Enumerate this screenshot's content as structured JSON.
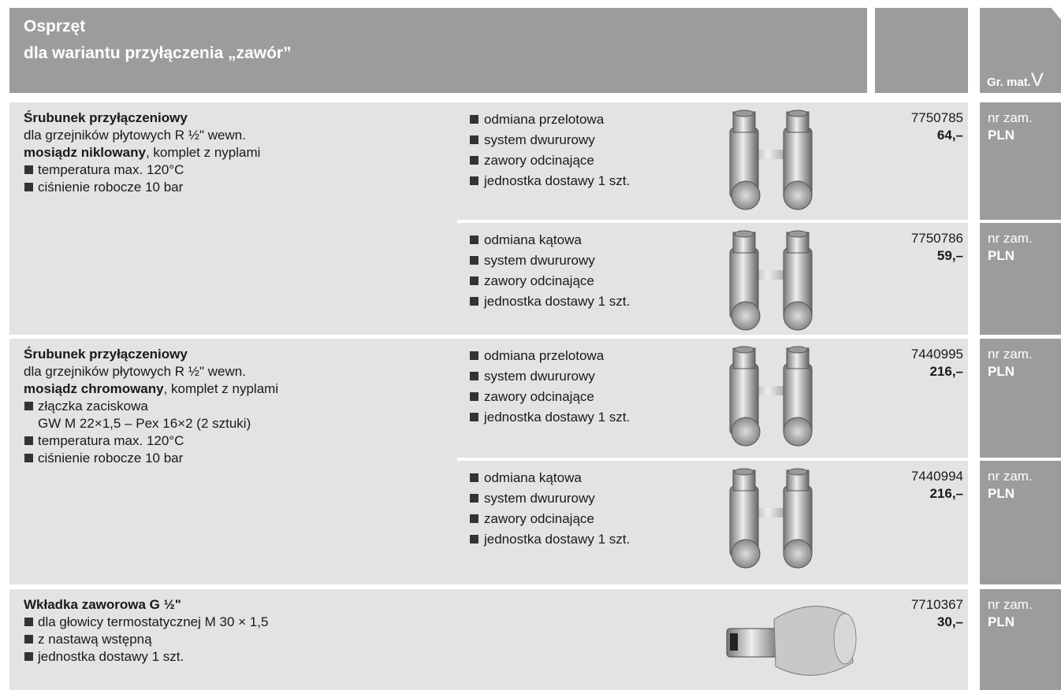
{
  "header": {
    "title": "Osprzęt",
    "subtitle": "dla wariantu przyłączenia „zawór”",
    "material_group_label": "Gr. mat.",
    "material_group": "V"
  },
  "sections": [
    {
      "title": "Śrubunek przyłączeniowy",
      "description": [
        {
          "text": "dla grzejników płytowych R ½\" wewn."
        },
        {
          "bold": "mosiądz niklowany",
          "text": ", komplet z nyplami"
        }
      ],
      "bullets": [
        [
          "temperatura max. 120°C"
        ],
        [
          "ciśnienie robocze 10 bar"
        ]
      ],
      "items": [
        {
          "features": [
            "odmiana przelotowa",
            "system dwururowy",
            "zawory odcinające",
            "jednostka dostawy 1 szt."
          ],
          "code": "7750785",
          "price": "64,–",
          "order_label": "nr zam.",
          "currency": "PLN"
        },
        {
          "features": [
            "odmiana kątowa",
            "system dwururowy",
            "zawory odcinające",
            "jednostka dostawy 1 szt."
          ],
          "code": "7750786",
          "price": "59,–",
          "order_label": "nr zam.",
          "currency": "PLN"
        }
      ]
    },
    {
      "title": "Śrubunek przyłączeniowy",
      "description": [
        {
          "text": "dla grzejników płytowych R ½\" wewn."
        },
        {
          "bold": "mosiądz chromowany",
          "text": ", komplet z nyplami"
        }
      ],
      "bullets": [
        [
          "złączka zaciskowa",
          "GW M 22×1,5 – Pex 16×2 (2 sztuki)"
        ],
        [
          "temperatura max. 120°C"
        ],
        [
          "ciśnienie robocze 10 bar"
        ]
      ],
      "items": [
        {
          "features": [
            "odmiana przelotowa",
            "system dwururowy",
            "zawory odcinające",
            "jednostka dostawy 1 szt."
          ],
          "code": "7440995",
          "price": "216,–",
          "order_label": "nr zam.",
          "currency": "PLN"
        },
        {
          "features": [
            "odmiana kątowa",
            "system dwururowy",
            "zawory odcinające",
            "jednostka dostawy 1 szt."
          ],
          "code": "7440994",
          "price": "216,–",
          "order_label": "nr zam.",
          "currency": "PLN"
        }
      ]
    },
    {
      "title": "Wkładka zaworowa G ½\"",
      "description": [],
      "bullets": [
        [
          "dla głowicy termostatycznej M 30 × 1,5"
        ],
        [
          "z nastawą wstępną"
        ],
        [
          "jednostka dostawy 1 szt."
        ]
      ],
      "items": [
        {
          "features": [],
          "code": "7710367",
          "price": "30,–",
          "order_label": "nr zam.",
          "currency": "PLN"
        }
      ]
    }
  ]
}
